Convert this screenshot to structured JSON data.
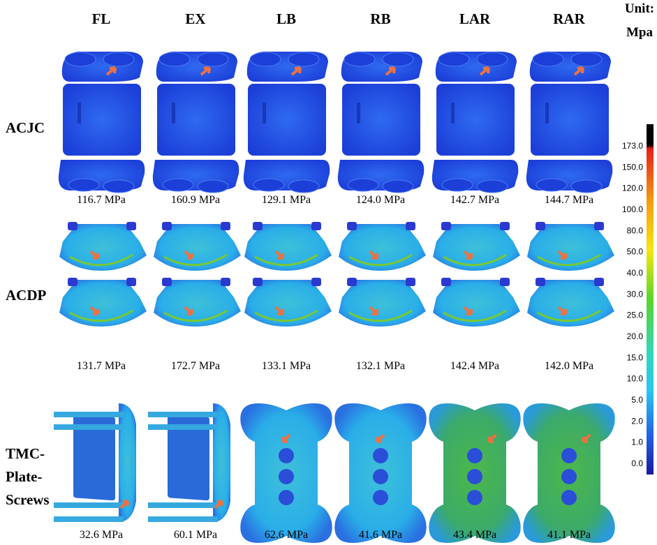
{
  "columns": [
    "FL",
    "EX",
    "LB",
    "RB",
    "LAR",
    "RAR"
  ],
  "unit": {
    "line1": "Unit:",
    "line2": "Mpa"
  },
  "rows": [
    {
      "label": [
        "ACJC"
      ],
      "values": [
        "116.7 MPa",
        "160.9 MPa",
        "129.1 MPa",
        "124.0 MPa",
        "142.7 MPa",
        "144.7 MPa"
      ]
    },
    {
      "label": [
        "ACDP"
      ],
      "values": [
        "131.7 MPa",
        "172.7 MPa",
        "133.1 MPa",
        "132.1 MPa",
        "142.4 MPa",
        "142.0 MPa"
      ]
    },
    {
      "label": [
        "TMC-",
        "Plate-",
        "Screws"
      ],
      "values": [
        "32.6 MPa",
        "60.1 MPa",
        "62.6 MPa",
        "41.6 MPa",
        "43.4 MPa",
        "41.1 MPa"
      ]
    }
  ],
  "colorbar": [
    "173.0",
    "150.0",
    "120.0",
    "100.0",
    "80.0",
    "50.0",
    "40.0",
    "30.0",
    "25.0",
    "20.0",
    "15.0",
    "10.0",
    "5.0",
    "2.0",
    "1.0",
    "0.0"
  ]
}
